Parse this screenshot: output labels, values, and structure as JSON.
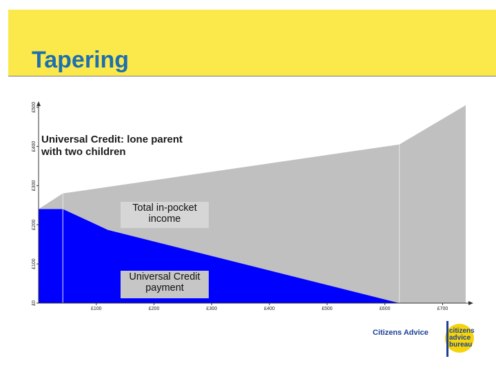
{
  "slide": {
    "title": "Tapering"
  },
  "chart_data": {
    "type": "area",
    "title": "Universal Credit: lone parent with two children",
    "title_lines": [
      "Universal Credit: lone parent",
      "with two children"
    ],
    "xlabel": "",
    "ylabel": "",
    "xlim": [
      0,
      740
    ],
    "ylim": [
      0,
      510
    ],
    "x_ticks": [
      {
        "value": 100,
        "label": "£100"
      },
      {
        "value": 200,
        "label": "£200"
      },
      {
        "value": 300,
        "label": "£300"
      },
      {
        "value": 400,
        "label": "£400"
      },
      {
        "value": 500,
        "label": "£500"
      },
      {
        "value": 600,
        "label": "£600"
      },
      {
        "value": 700,
        "label": "£700"
      }
    ],
    "y_ticks": [
      {
        "value": 0,
        "label": "£0"
      },
      {
        "value": 100,
        "label": "£100"
      },
      {
        "value": 200,
        "label": "£200"
      },
      {
        "value": 300,
        "label": "£300"
      },
      {
        "value": 400,
        "label": "£400"
      },
      {
        "value": 500,
        "label": "£500"
      }
    ],
    "series": [
      {
        "color": "#c0c0c0",
        "points": [
          [
            0,
            240
          ],
          [
            42,
            280
          ],
          [
            625,
            405
          ],
          [
            740,
            505
          ]
        ]
      },
      {
        "color": "#0000ff",
        "points": [
          [
            0,
            240
          ],
          [
            42,
            240
          ],
          [
            120,
            187
          ],
          [
            625,
            0
          ],
          [
            740,
            0
          ]
        ]
      }
    ],
    "grid": false,
    "annotations": {
      "income": [
        "Total in-pocket",
        "income"
      ],
      "payment": [
        "Universal Credit",
        "payment"
      ]
    }
  },
  "footer": {
    "org_name": "Citizens Advice",
    "logo_lines": [
      "citizens",
      "advice",
      "bureau"
    ]
  },
  "colors": {
    "header": "#fbe84a",
    "title": "#1d6fb0",
    "income_area": "#c0c0c0",
    "uc_area": "#0000ff",
    "brand_blue": "#1c3f94",
    "brand_yellow": "#f5d40c"
  }
}
